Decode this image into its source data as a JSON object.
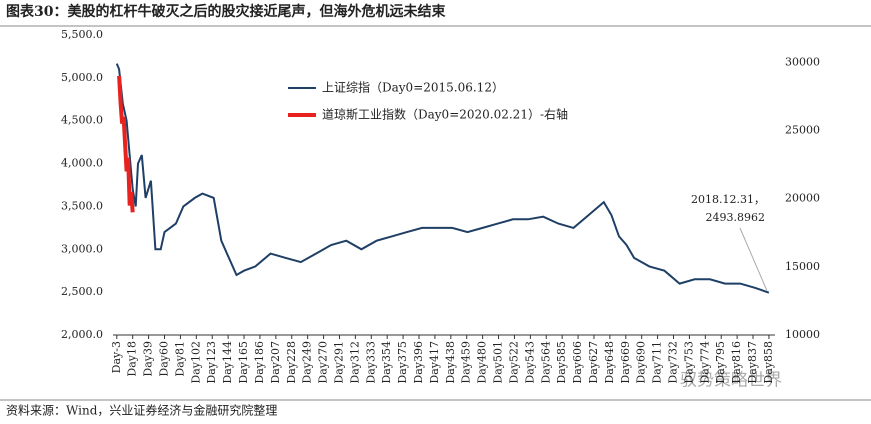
{
  "chart_data": {
    "type": "line",
    "title": "图表30：美股的杠杆牛破灭之后的股灾接近尾声，但海外危机远未结束",
    "source": "资料来源：Wind，兴业证券经济与金融研究院整理",
    "watermark": "驭势策略世界",
    "annotation": [
      "2018.12.31，",
      "2493.8962"
    ],
    "xlim": [
      -8,
      866
    ],
    "xticks": [
      {
        "value": -3,
        "label": "Day-3"
      },
      {
        "value": 18,
        "label": "Day18"
      },
      {
        "value": 39,
        "label": "Day39"
      },
      {
        "value": 60,
        "label": "Day60"
      },
      {
        "value": 81,
        "label": "Day81"
      },
      {
        "value": 102,
        "label": "Day102"
      },
      {
        "value": 123,
        "label": "Day123"
      },
      {
        "value": 144,
        "label": "Day144"
      },
      {
        "value": 165,
        "label": "Day165"
      },
      {
        "value": 186,
        "label": "Day186"
      },
      {
        "value": 207,
        "label": "Day207"
      },
      {
        "value": 228,
        "label": "Day228"
      },
      {
        "value": 249,
        "label": "Day249"
      },
      {
        "value": 270,
        "label": "Day270"
      },
      {
        "value": 291,
        "label": "Day291"
      },
      {
        "value": 312,
        "label": "Day312"
      },
      {
        "value": 333,
        "label": "Day333"
      },
      {
        "value": 354,
        "label": "Day354"
      },
      {
        "value": 375,
        "label": "Day375"
      },
      {
        "value": 396,
        "label": "Day396"
      },
      {
        "value": 417,
        "label": "Day417"
      },
      {
        "value": 438,
        "label": "Day438"
      },
      {
        "value": 459,
        "label": "Day459"
      },
      {
        "value": 480,
        "label": "Day480"
      },
      {
        "value": 501,
        "label": "Day501"
      },
      {
        "value": 522,
        "label": "Day522"
      },
      {
        "value": 543,
        "label": "Day543"
      },
      {
        "value": 564,
        "label": "Day564"
      },
      {
        "value": 585,
        "label": "Day585"
      },
      {
        "value": 606,
        "label": "Day606"
      },
      {
        "value": 627,
        "label": "Day627"
      },
      {
        "value": 648,
        "label": "Day648"
      },
      {
        "value": 669,
        "label": "Day669"
      },
      {
        "value": 690,
        "label": "Day690"
      },
      {
        "value": 711,
        "label": "Day711"
      },
      {
        "value": 732,
        "label": "Day732"
      },
      {
        "value": 753,
        "label": "Day753"
      },
      {
        "value": 774,
        "label": "Day774"
      },
      {
        "value": 795,
        "label": "Day795"
      },
      {
        "value": 816,
        "label": "Day816"
      },
      {
        "value": 837,
        "label": "Day837"
      },
      {
        "value": 858,
        "label": "Day858"
      }
    ],
    "ylim": [
      2000,
      5500
    ],
    "yticks": [
      {
        "value": 2000,
        "label": "2,000.0"
      },
      {
        "value": 2500,
        "label": "2,500.0"
      },
      {
        "value": 3000,
        "label": "3,000.0"
      },
      {
        "value": 3500,
        "label": "3,500.0"
      },
      {
        "value": 4000,
        "label": "4,000.0"
      },
      {
        "value": 4500,
        "label": "4,500.0"
      },
      {
        "value": 5000,
        "label": "5,000.0"
      },
      {
        "value": 5500,
        "label": "5,500.0"
      }
    ],
    "y2lim": [
      10000,
      32000
    ],
    "y2ticks": [
      10000,
      15000,
      20000,
      25000,
      30000
    ],
    "series": [
      {
        "name": "上证综指（Day0=2015.06.12）",
        "color": "#1f3f66",
        "x": [
          -3,
          0,
          5,
          10,
          15,
          18,
          22,
          25,
          30,
          35,
          42,
          48,
          55,
          60,
          75,
          85,
          100,
          110,
          125,
          135,
          145,
          155,
          165,
          180,
          200,
          220,
          240,
          260,
          280,
          300,
          320,
          340,
          360,
          380,
          400,
          420,
          440,
          460,
          480,
          500,
          520,
          540,
          560,
          580,
          600,
          620,
          640,
          650,
          660,
          670,
          680,
          700,
          720,
          740,
          760,
          780,
          800,
          820,
          840,
          858
        ],
        "values": [
          5166,
          5100,
          4700,
          4500,
          4000,
          3700,
          3500,
          4000,
          4100,
          3600,
          3800,
          3000,
          3000,
          3200,
          3300,
          3500,
          3600,
          3650,
          3600,
          3100,
          2900,
          2700,
          2750,
          2800,
          2950,
          2900,
          2850,
          2950,
          3050,
          3100,
          3000,
          3100,
          3150,
          3200,
          3250,
          3250,
          3250,
          3200,
          3250,
          3300,
          3350,
          3350,
          3380,
          3300,
          3250,
          3400,
          3550,
          3400,
          3150,
          3050,
          2900,
          2800,
          2750,
          2600,
          2650,
          2650,
          2600,
          2600,
          2550,
          2493.8962
        ]
      },
      {
        "name": "道琼斯工业指数（Day0=2020.02.21）-右轴",
        "color": "#e8231f",
        "axis": "y2",
        "x": [
          0,
          2,
          4,
          6,
          8,
          10,
          12,
          14,
          16,
          18
        ],
        "values": [
          29000,
          27000,
          25500,
          26000,
          24000,
          22000,
          23000,
          19500,
          20500,
          19000
        ]
      }
    ]
  }
}
